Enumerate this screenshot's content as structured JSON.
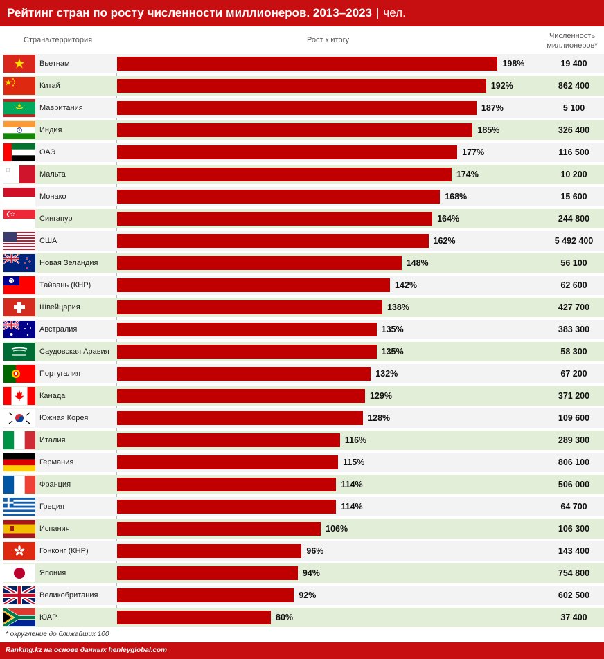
{
  "header": {
    "title": "Рейтинг стран по росту численности миллионеров. 2013–2023",
    "separator": "|",
    "unit": "чел."
  },
  "columns": {
    "country": "Страна/территория",
    "growth": "Рост к итогу",
    "count": "Численность миллионеров*"
  },
  "footnote": "* округление до ближайших 100",
  "source": "Ranking.kz на основе данных henleyglobal.com",
  "colors": {
    "accent": "#c70e10",
    "bar": "#c00000",
    "row_odd": "#f3f3f3",
    "row_even": "#e3eed8"
  },
  "chart_data": {
    "type": "bar",
    "orientation": "horizontal",
    "xlim": [
      0,
      200
    ],
    "categories": [
      "Вьетнам",
      "Китай",
      "Мавритания",
      "Индия",
      "ОАЭ",
      "Мальта",
      "Монако",
      "Сингапур",
      "США",
      "Новая Зеландия",
      "Тайвань (КНР)",
      "Швейцария",
      "Австралия",
      "Саудовская Аравия",
      "Португалия",
      "Канада",
      "Южная Корея",
      "Италия",
      "Германия",
      "Франция",
      "Греция",
      "Испания",
      "Гонконг (КНР)",
      "Япония",
      "Великобритания",
      "ЮАР"
    ],
    "values": [
      198,
      192,
      187,
      185,
      177,
      174,
      168,
      164,
      162,
      148,
      142,
      138,
      135,
      135,
      132,
      129,
      128,
      116,
      115,
      114,
      114,
      106,
      96,
      94,
      92,
      80
    ],
    "labels": [
      "198%",
      "192%",
      "187%",
      "185%",
      "177%",
      "174%",
      "168%",
      "164%",
      "162%",
      "148%",
      "142%",
      "138%",
      "135%",
      "135%",
      "132%",
      "129%",
      "128%",
      "116%",
      "115%",
      "114%",
      "114%",
      "106%",
      "96%",
      "94%",
      "92%",
      "80%"
    ],
    "counts": [
      "19 400",
      "862 400",
      "5 100",
      "326 400",
      "116 500",
      "10 200",
      "15 600",
      "244 800",
      "5 492 400",
      "56 100",
      "62 600",
      "427 700",
      "383 300",
      "58 300",
      "67 200",
      "371 200",
      "109 600",
      "289 300",
      "806 100",
      "506 000",
      "64 700",
      "106 300",
      "143 400",
      "754 800",
      "602 500",
      "37 400"
    ],
    "flags": [
      "vietnam-flag",
      "china-flag",
      "mauritania-flag",
      "india-flag",
      "uae-flag",
      "malta-flag",
      "monaco-flag",
      "singapore-flag",
      "usa-flag",
      "new-zealand-flag",
      "taiwan-flag",
      "switzerland-flag",
      "australia-flag",
      "saudi-arabia-flag",
      "portugal-flag",
      "canada-flag",
      "south-korea-flag",
      "italy-flag",
      "germany-flag",
      "france-flag",
      "greece-flag",
      "spain-flag",
      "hong-kong-flag",
      "japan-flag",
      "uk-flag",
      "south-africa-flag"
    ]
  }
}
